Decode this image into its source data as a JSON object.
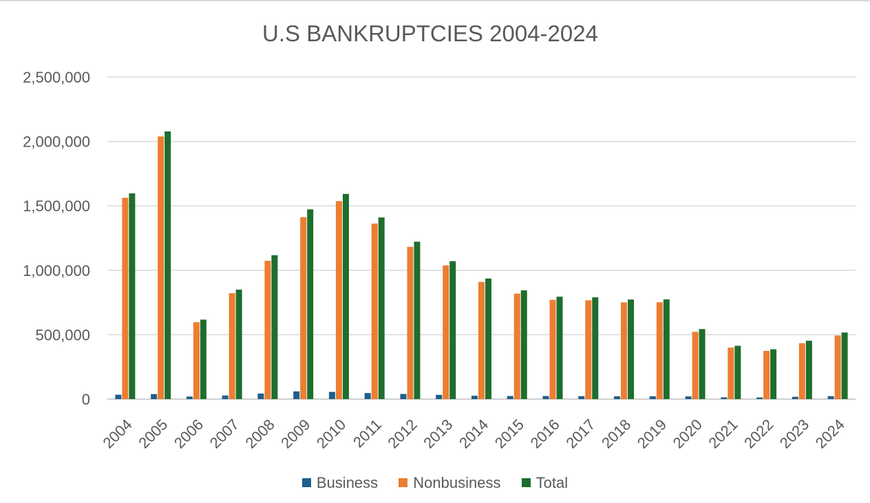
{
  "chart_data": {
    "type": "bar",
    "title": "U.S BANKRUPTCIES 2004-2024",
    "categories": [
      "2004",
      "2005",
      "2006",
      "2007",
      "2008",
      "2009",
      "2010",
      "2011",
      "2012",
      "2013",
      "2014",
      "2015",
      "2016",
      "2017",
      "2018",
      "2019",
      "2020",
      "2021",
      "2022",
      "2023",
      "2024"
    ],
    "series": [
      {
        "name": "Business",
        "color": "#1f5f8b",
        "values": [
          34000,
          39000,
          20000,
          28000,
          43000,
          60000,
          56000,
          47000,
          40000,
          33000,
          26000,
          24000,
          24000,
          23000,
          22000,
          22000,
          21000,
          14000,
          13000,
          18000,
          23000
        ]
      },
      {
        "name": "Nonbusiness",
        "color": "#ed7d31",
        "values": [
          1563000,
          2039000,
          597000,
          822000,
          1074000,
          1412000,
          1537000,
          1363000,
          1182000,
          1038000,
          910000,
          819000,
          771000,
          767000,
          751000,
          752000,
          522000,
          400000,
          374000,
          434000,
          494000
        ]
      },
      {
        "name": "Total",
        "color": "#1e6e2e",
        "values": [
          1597000,
          2078000,
          617000,
          850000,
          1117000,
          1473000,
          1593000,
          1410000,
          1222000,
          1071000,
          936000,
          844000,
          795000,
          790000,
          773000,
          774000,
          544000,
          414000,
          387000,
          453000,
          517000
        ]
      }
    ],
    "ylim": [
      0,
      2500000
    ],
    "yticks": [
      "0",
      "500,000",
      "1,000,000",
      "1,500,000",
      "2,000,000",
      "2,500,000"
    ],
    "grid": true,
    "legend_position": "bottom"
  }
}
